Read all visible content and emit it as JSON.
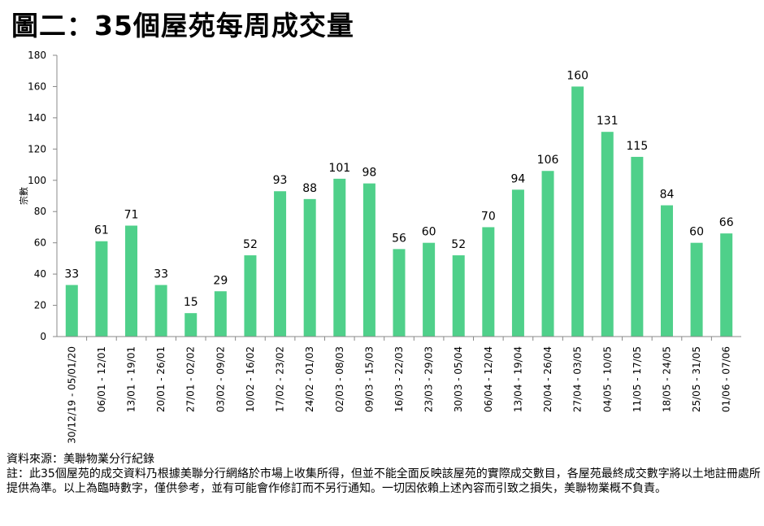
{
  "title": "圖二：35個屋苑每周成交量",
  "chart_data": {
    "type": "bar",
    "title": "圖二：35個屋苑每周成交量",
    "xlabel": "",
    "ylabel": "宗數",
    "ylim": [
      0,
      180
    ],
    "yticks": [
      0,
      20,
      40,
      60,
      80,
      100,
      120,
      140,
      160,
      180
    ],
    "grid": false,
    "legend": "none",
    "bar_color": "#4fd08a",
    "categories": [
      "30/12/19 - 05/01/20",
      "06/01 - 12/01",
      "13/01 - 19/01",
      "20/01 - 26/01",
      "27/01 - 02/02",
      "03/02 - 09/02",
      "10/02 - 16/02",
      "17/02 - 23/02",
      "24/02 - 01/03",
      "02/03 - 08/03",
      "09/03 - 15/03",
      "16/03 - 22/03",
      "23/03 - 29/03",
      "30/03 - 05/04",
      "06/04 - 12/04",
      "13/04 - 19/04",
      "20/04 - 26/04",
      "27/04 - 03/05",
      "04/05 - 10/05",
      "11/05 - 17/05",
      "18/05 - 24/05",
      "25/05 - 31/05",
      "01/06 - 07/06"
    ],
    "values": [
      33,
      61,
      71,
      33,
      15,
      29,
      52,
      93,
      88,
      101,
      98,
      56,
      60,
      52,
      70,
      94,
      106,
      160,
      131,
      115,
      84,
      60,
      66
    ]
  },
  "footnote": {
    "source": "資料來源：美聯物業分行紀錄",
    "note": "註：此35個屋苑的成交資料乃根據美聯分行網絡於市場上收集所得，但並不能全面反映該屋苑的實際成交數目，各屋苑最終成交數字將以土地註冊處所提供為準。以上為臨時數字，僅供參考，並有可能會作修訂而不另行通知。一切因依賴上述內容而引致之損失，美聯物業概不負責。"
  }
}
